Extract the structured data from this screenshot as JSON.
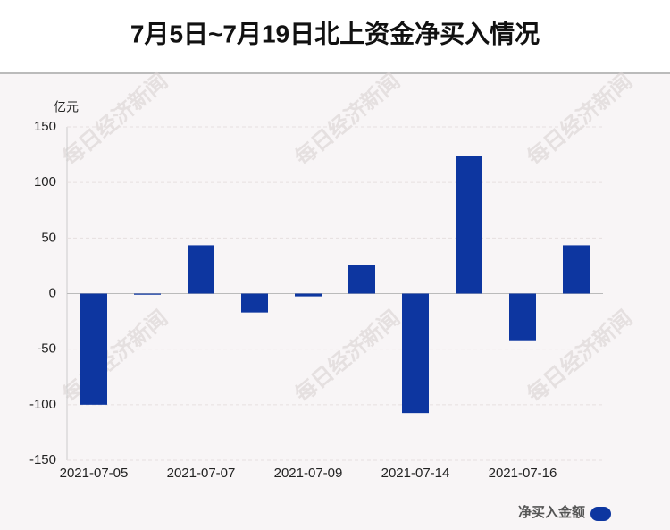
{
  "chart_data": {
    "type": "bar",
    "title": "7月5日~7月19日北上资金净买入情况",
    "y_unit": "亿元",
    "watermark": "每日经济新闻",
    "categories": [
      "2021-07-05",
      null,
      "2021-07-07",
      null,
      "2021-07-09",
      null,
      "2021-07-14",
      null,
      "2021-07-16",
      null
    ],
    "series": [
      {
        "name": "净买入金额",
        "color": "#0d36a0",
        "values": [
          -100,
          -1,
          43.5,
          -17,
          -2.5,
          25.5,
          -107.5,
          123.5,
          -42,
          43.5
        ]
      }
    ],
    "ylim": [
      -150,
      150
    ],
    "yticks": [
      -150,
      -100,
      -50,
      0,
      50,
      100,
      150
    ],
    "grid": true,
    "legend": "bottom-right"
  }
}
